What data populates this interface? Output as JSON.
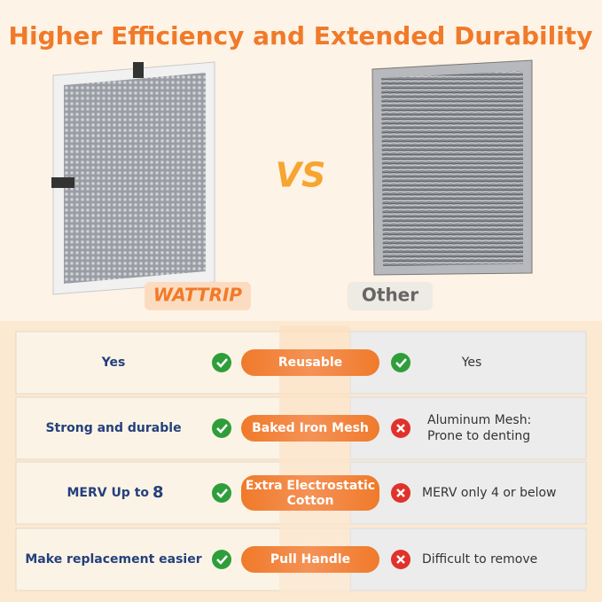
{
  "header": {
    "title": "Higher Efficiency and Extended Durability",
    "vs": "VS",
    "brand_left": "WATTRIP",
    "brand_right": "Other"
  },
  "table": {
    "rows": [
      {
        "left": "Yes",
        "feature": "Reusable",
        "right": "Yes"
      },
      {
        "left": "Strong and durable",
        "feature": "Baked Iron Mesh",
        "right": "Aluminum Mesh: Prone to denting"
      },
      {
        "left": "MERV Up to",
        "left_emphasis": "8",
        "feature": "Extra Electrostatic Cotton",
        "right": "MERV only 4 or below"
      },
      {
        "left": "Make replacement easier",
        "feature": "Pull Handle",
        "right": "Difficult to remove"
      }
    ]
  }
}
